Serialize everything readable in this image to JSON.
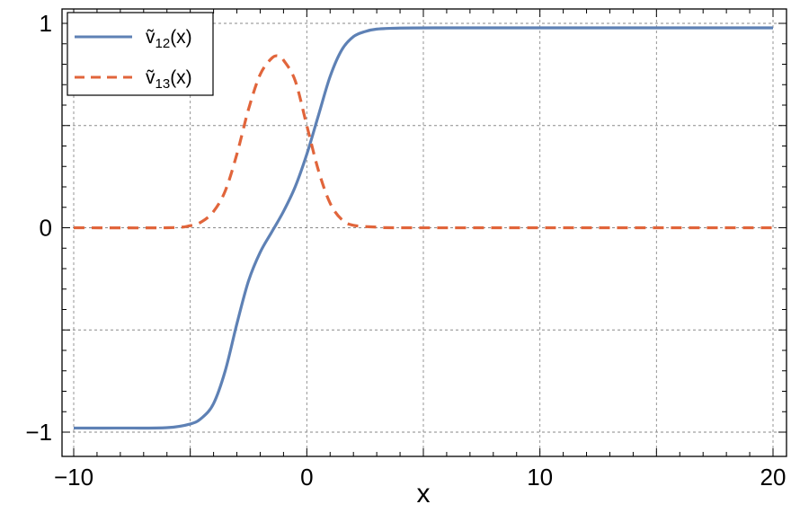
{
  "chart_data": {
    "type": "line",
    "title": "",
    "xlabel": "x",
    "ylabel": "",
    "xlim": [
      -10,
      20
    ],
    "ylim": [
      -1,
      1
    ],
    "grid": true,
    "legend_position": "top-left",
    "x_ticks": [
      -10,
      0,
      10,
      20
    ],
    "x_tick_labels": [
      "−10",
      "0",
      "10",
      "20"
    ],
    "y_ticks": [
      -1,
      0,
      1
    ],
    "y_tick_labels": [
      "−1",
      "0",
      "1"
    ],
    "series": [
      {
        "name": "ṽ12(x)",
        "legend_main": "ṽ",
        "legend_sub": "12",
        "legend_arg": "(x)",
        "color": "#5e81b5",
        "dash": "solid",
        "points": [
          [
            -10,
            -0.98
          ],
          [
            -8,
            -0.98
          ],
          [
            -6,
            -0.978
          ],
          [
            -5,
            -0.96
          ],
          [
            -4.5,
            -0.93
          ],
          [
            -4,
            -0.86
          ],
          [
            -3.5,
            -0.7
          ],
          [
            -3,
            -0.47
          ],
          [
            -2.5,
            -0.26
          ],
          [
            -2,
            -0.12
          ],
          [
            -1.5,
            -0.02
          ],
          [
            -1,
            0.08
          ],
          [
            -0.5,
            0.2
          ],
          [
            0,
            0.36
          ],
          [
            0.5,
            0.55
          ],
          [
            1,
            0.74
          ],
          [
            1.5,
            0.87
          ],
          [
            2,
            0.935
          ],
          [
            2.5,
            0.96
          ],
          [
            3,
            0.972
          ],
          [
            4,
            0.977
          ],
          [
            6,
            0.978
          ],
          [
            10,
            0.978
          ],
          [
            15,
            0.978
          ],
          [
            20,
            0.978
          ]
        ]
      },
      {
        "name": "ṽ13(x)",
        "legend_main": "ṽ",
        "legend_sub": "13",
        "legend_arg": "(x)",
        "color": "#e1653b",
        "dash": "dashed",
        "points": [
          [
            -10,
            0
          ],
          [
            -6,
            0
          ],
          [
            -5,
            0.01
          ],
          [
            -4.5,
            0.03
          ],
          [
            -4,
            0.08
          ],
          [
            -3.5,
            0.18
          ],
          [
            -3,
            0.36
          ],
          [
            -2.5,
            0.58
          ],
          [
            -2,
            0.75
          ],
          [
            -1.5,
            0.83
          ],
          [
            -1.2,
            0.84
          ],
          [
            -1,
            0.82
          ],
          [
            -0.5,
            0.72
          ],
          [
            0,
            0.5
          ],
          [
            0.5,
            0.28
          ],
          [
            1,
            0.12
          ],
          [
            1.5,
            0.04
          ],
          [
            2,
            0.012
          ],
          [
            3,
            0.003
          ],
          [
            4,
            0
          ],
          [
            10,
            0
          ],
          [
            15,
            0
          ],
          [
            20,
            0
          ]
        ]
      }
    ]
  }
}
